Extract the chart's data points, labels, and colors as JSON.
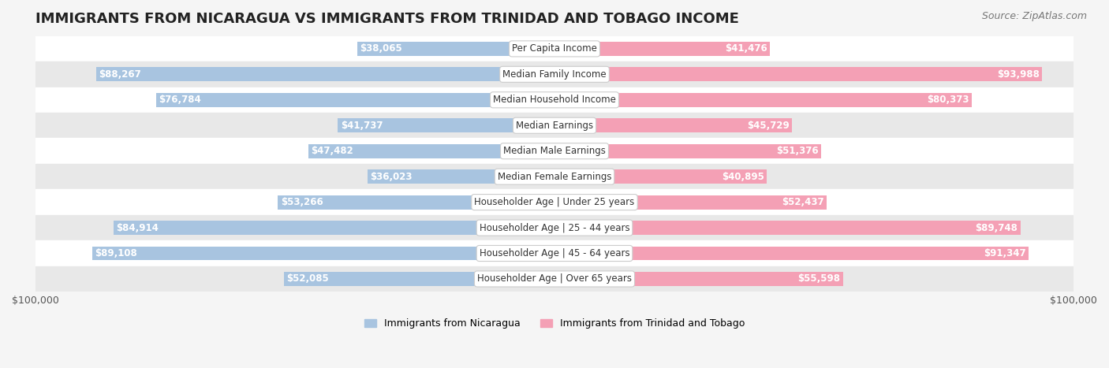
{
  "title": "IMMIGRANTS FROM NICARAGUA VS IMMIGRANTS FROM TRINIDAD AND TOBAGO INCOME",
  "source": "Source: ZipAtlas.com",
  "categories": [
    "Per Capita Income",
    "Median Family Income",
    "Median Household Income",
    "Median Earnings",
    "Median Male Earnings",
    "Median Female Earnings",
    "Householder Age | Under 25 years",
    "Householder Age | 25 - 44 years",
    "Householder Age | 45 - 64 years",
    "Householder Age | Over 65 years"
  ],
  "nicaragua_values": [
    38065,
    88267,
    76784,
    41737,
    47482,
    36023,
    53266,
    84914,
    89108,
    52085
  ],
  "trinidad_values": [
    41476,
    93988,
    80373,
    45729,
    51376,
    40895,
    52437,
    89748,
    91347,
    55598
  ],
  "nicaragua_labels": [
    "$38,065",
    "$88,267",
    "$76,784",
    "$41,737",
    "$47,482",
    "$36,023",
    "$53,266",
    "$84,914",
    "$89,108",
    "$52,085"
  ],
  "trinidad_labels": [
    "$41,476",
    "$93,988",
    "$80,373",
    "$45,729",
    "$51,376",
    "$40,895",
    "$52,437",
    "$89,748",
    "$91,347",
    "$55,598"
  ],
  "nicaragua_color": "#a8c4e0",
  "trinidad_color": "#f4a0b5",
  "nicaragua_label_color_inside": "#ffffff",
  "nicaragua_label_color_outside": "#555555",
  "trinidad_label_color_inside": "#ffffff",
  "trinidad_label_color_outside": "#555555",
  "max_value": 100000,
  "background_color": "#f5f5f5",
  "row_bg_colors": [
    "#ffffff",
    "#e8e8e8"
  ],
  "legend_nicaragua": "Immigrants from Nicaragua",
  "legend_trinidad": "Immigrants from Trinidad and Tobago",
  "title_fontsize": 13,
  "source_fontsize": 9,
  "label_fontsize": 8.5,
  "category_fontsize": 8.5,
  "bar_height": 0.55
}
